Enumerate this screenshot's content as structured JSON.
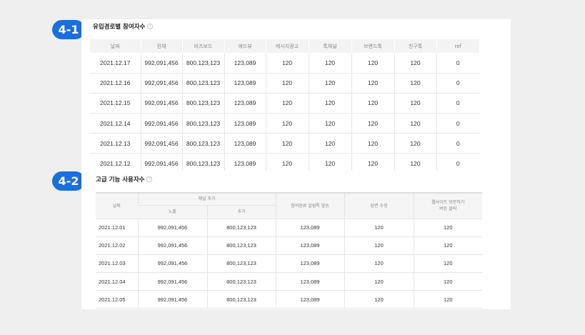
{
  "badges": {
    "first": "4-1",
    "second": "4-2"
  },
  "section1": {
    "title": "유입경로별 참여자수",
    "columns": [
      "날짜",
      "전체",
      "비즈보드",
      "애드뷰",
      "메시지광고",
      "톡채널",
      "브랜드톡",
      "친구톡",
      "ref"
    ],
    "rows": [
      [
        "2021.12.17",
        "992,091,456",
        "800,123,123",
        "123,089",
        "120",
        "120",
        "120",
        "120",
        "0"
      ],
      [
        "2021.12.16",
        "992,091,456",
        "800,123,123",
        "123,089",
        "120",
        "120",
        "120",
        "120",
        "0"
      ],
      [
        "2021.12.15",
        "992,091,456",
        "800,123,123",
        "123,089",
        "120",
        "120",
        "120",
        "120",
        "0"
      ],
      [
        "2021.12.14",
        "992,091,456",
        "800,123,123",
        "123,089",
        "120",
        "120",
        "120",
        "120",
        "0"
      ],
      [
        "2021.12.13",
        "992,091,456",
        "800,123,123",
        "123,089",
        "120",
        "120",
        "120",
        "120",
        "0"
      ],
      [
        "2021.12.12",
        "992,091,456",
        "800,123,123",
        "123,089",
        "120",
        "120",
        "120",
        "120",
        "0"
      ]
    ]
  },
  "section2": {
    "title": "고급 기능 사용자수",
    "header": {
      "date": "날짜",
      "channel_add": "채널 추가",
      "exposure": "노출",
      "add": "추가",
      "alimtalk": "참여완료 알림톡 발송",
      "reply": "답변 수정",
      "website_line1": "웹사이트 방문하기",
      "website_line2": "버튼 클릭"
    },
    "rows": [
      [
        "2021.12.01",
        "992,091,456",
        "800,123,123",
        "123,089",
        "120",
        "120"
      ],
      [
        "2021.12.02",
        "992,091,456",
        "800,123,123",
        "123,089",
        "120",
        "120"
      ],
      [
        "2021.12.03",
        "992,091,456",
        "800,123,123",
        "123,089",
        "120",
        "120"
      ],
      [
        "2021.12.04",
        "992,091,456",
        "800,123,123",
        "123,089",
        "120",
        "120"
      ],
      [
        "2021.12.05",
        "992,091,456",
        "800,123,123",
        "123,089",
        "120",
        "120"
      ]
    ]
  },
  "colors": {
    "badge": "#1a6fdc",
    "background": "#efefef",
    "header_bg": "#f3f3f3"
  },
  "icons": {
    "info": "info-circle-icon"
  }
}
